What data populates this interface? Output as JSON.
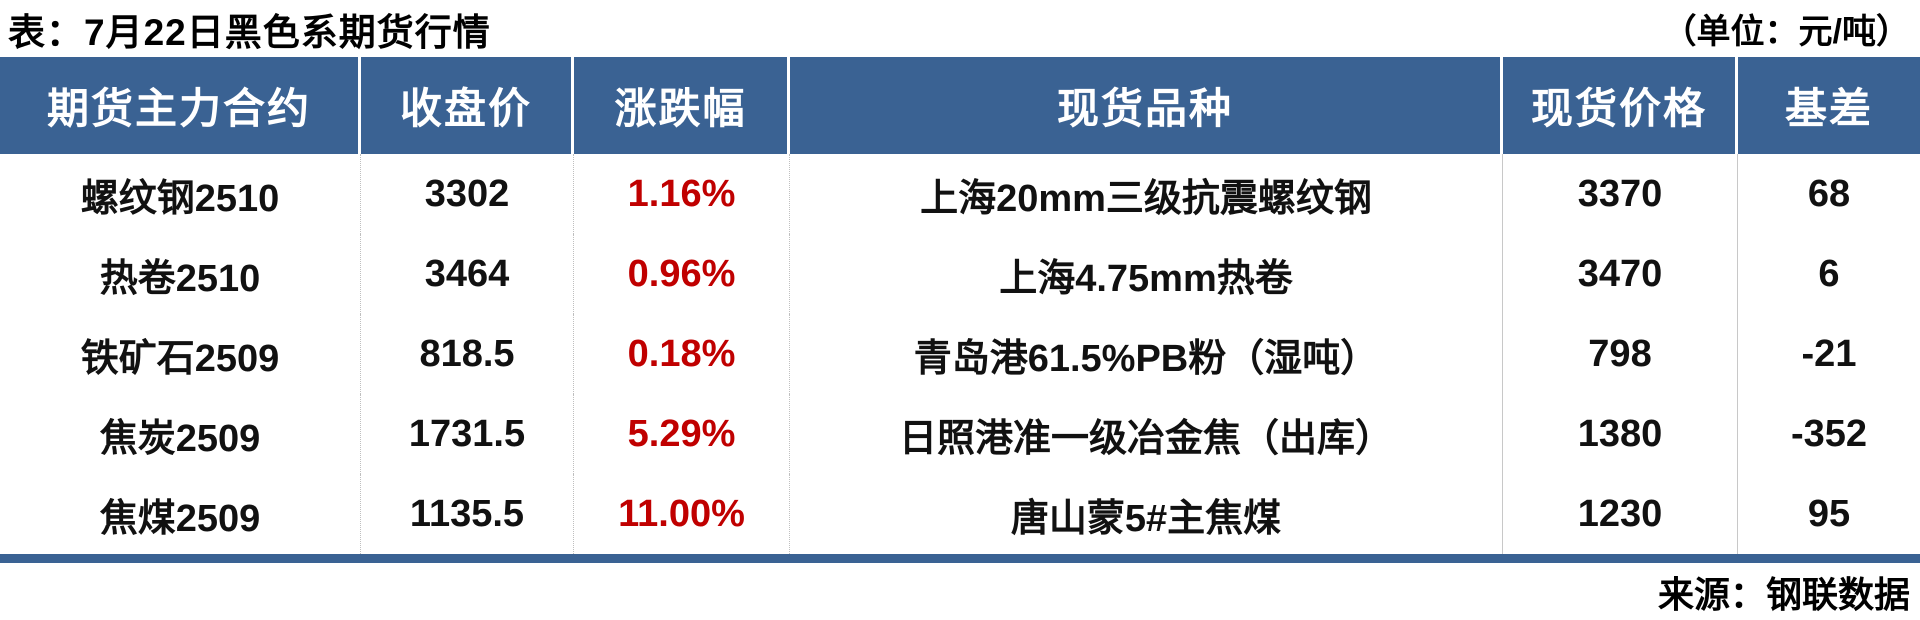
{
  "title": "表：7月22日黑色系期货行情",
  "unit_note": "（单位：元/吨）",
  "source": "来源：钢联数据",
  "colors": {
    "header_bg": "#3a6293",
    "row_alt_bg": "#dce6f1",
    "row_bg": "#ffffff",
    "pct_red": "#c00000",
    "text": "#000000"
  },
  "table": {
    "columns": [
      "期货主力合约",
      "收盘价",
      "涨跌幅",
      "现货品种",
      "现货价格",
      "基差"
    ],
    "rows": [
      {
        "contract": "螺纹钢2510",
        "close": "3302",
        "change": "1.16%",
        "spot": "上海20mm三级抗震螺纹钢",
        "spot_price": "3370",
        "basis": "68"
      },
      {
        "contract": "热卷2510",
        "close": "3464",
        "change": "0.96%",
        "spot": "上海4.75mm热卷",
        "spot_price": "3470",
        "basis": "6"
      },
      {
        "contract": "铁矿石2509",
        "close": "818.5",
        "change": "0.18%",
        "spot": "青岛港61.5%PB粉（湿吨）",
        "spot_price": "798",
        "basis": "-21"
      },
      {
        "contract": "焦炭2509",
        "close": "1731.5",
        "change": "5.29%",
        "spot": "日照港准一级冶金焦（出库）",
        "spot_price": "1380",
        "basis": "-352"
      },
      {
        "contract": "焦煤2509",
        "close": "1135.5",
        "change": "11.00%",
        "spot": "唐山蒙5#主焦煤",
        "spot_price": "1230",
        "basis": "95"
      }
    ]
  }
}
